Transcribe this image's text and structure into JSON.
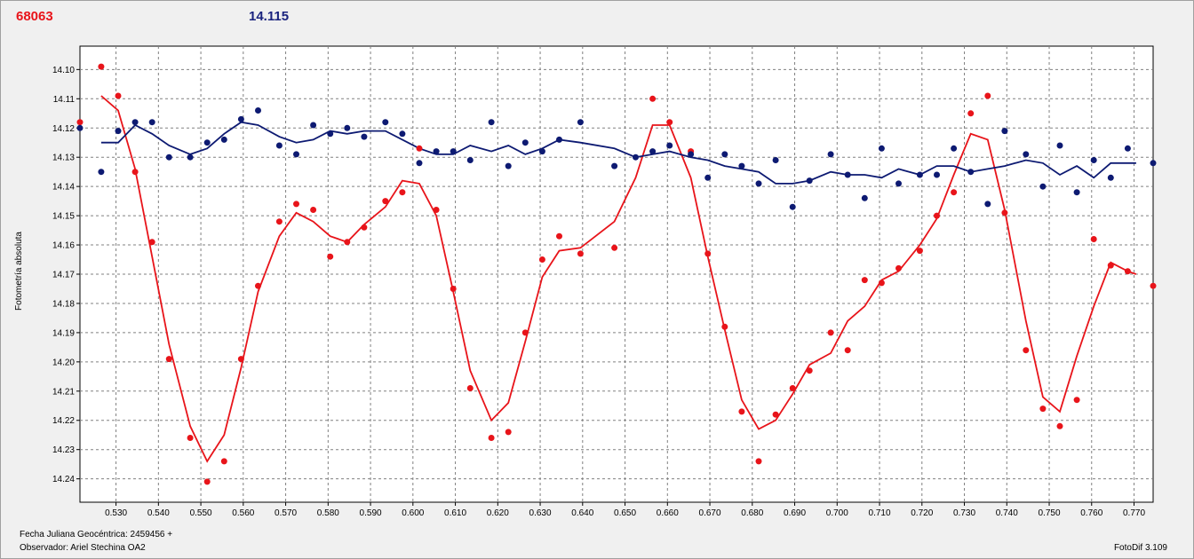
{
  "header": {
    "object_id": "68063",
    "reference_mag": "14.115"
  },
  "footer": {
    "julian_date": "Fecha Juliana Geocéntrica: 2459456 +",
    "observer": "Observador: Ariel Stechina OA2",
    "software": "FotoDif 3.109"
  },
  "chart_data": {
    "type": "scatter",
    "ylabel": "Fotometría absoluta",
    "xlim": [
      0.5215,
      0.7745
    ],
    "ylim": [
      14.092,
      14.248
    ],
    "y_inverted": true,
    "grid": true,
    "x_ticks": [
      "0.530",
      "0.540",
      "0.550",
      "0.560",
      "0.570",
      "0.580",
      "0.590",
      "0.600",
      "0.610",
      "0.620",
      "0.630",
      "0.640",
      "0.650",
      "0.660",
      "0.670",
      "0.680",
      "0.690",
      "0.700",
      "0.710",
      "0.720",
      "0.730",
      "0.740",
      "0.750",
      "0.760",
      "0.770"
    ],
    "y_ticks": [
      "14.10",
      "14.11",
      "14.12",
      "14.13",
      "14.14",
      "14.15",
      "14.16",
      "14.17",
      "14.18",
      "14.19",
      "14.20",
      "14.21",
      "14.22",
      "14.23",
      "14.24"
    ],
    "colors": {
      "red": "#e8141a",
      "blue": "#0d1a72"
    },
    "series": [
      {
        "color": "#e8141a",
        "points": [
          [
            0.5215,
            14.118
          ],
          [
            0.5265,
            14.099
          ],
          [
            0.5305,
            14.109
          ],
          [
            0.5345,
            14.135
          ],
          [
            0.5385,
            14.159
          ],
          [
            0.5425,
            14.199
          ],
          [
            0.5475,
            14.226
          ],
          [
            0.5515,
            14.241
          ],
          [
            0.5555,
            14.234
          ],
          [
            0.5595,
            14.199
          ],
          [
            0.5635,
            14.174
          ],
          [
            0.5685,
            14.152
          ],
          [
            0.5725,
            14.146
          ],
          [
            0.5765,
            14.148
          ],
          [
            0.5805,
            14.164
          ],
          [
            0.5845,
            14.159
          ],
          [
            0.5885,
            14.154
          ],
          [
            0.5935,
            14.145
          ],
          [
            0.5975,
            14.142
          ],
          [
            0.6015,
            14.127
          ],
          [
            0.6055,
            14.148
          ],
          [
            0.6095,
            14.175
          ],
          [
            0.6135,
            14.209
          ],
          [
            0.6185,
            14.226
          ],
          [
            0.6225,
            14.224
          ],
          [
            0.6265,
            14.19
          ],
          [
            0.6305,
            14.165
          ],
          [
            0.6345,
            14.157
          ],
          [
            0.6395,
            14.163
          ],
          [
            0.6475,
            14.161
          ],
          [
            0.6565,
            14.11
          ],
          [
            0.6605,
            14.118
          ],
          [
            0.6655,
            14.128
          ],
          [
            0.6695,
            14.163
          ],
          [
            0.6735,
            14.188
          ],
          [
            0.6775,
            14.217
          ],
          [
            0.6815,
            14.234
          ],
          [
            0.6855,
            14.218
          ],
          [
            0.6895,
            14.209
          ],
          [
            0.6935,
            14.203
          ],
          [
            0.6985,
            14.19
          ],
          [
            0.7025,
            14.196
          ],
          [
            0.7065,
            14.172
          ],
          [
            0.7105,
            14.173
          ],
          [
            0.7145,
            14.168
          ],
          [
            0.7195,
            14.162
          ],
          [
            0.7235,
            14.15
          ],
          [
            0.7275,
            14.142
          ],
          [
            0.7315,
            14.115
          ],
          [
            0.7355,
            14.109
          ],
          [
            0.7395,
            14.149
          ],
          [
            0.7445,
            14.196
          ],
          [
            0.7485,
            14.216
          ],
          [
            0.7525,
            14.222
          ],
          [
            0.7565,
            14.213
          ],
          [
            0.7605,
            14.158
          ],
          [
            0.7645,
            14.167
          ],
          [
            0.7685,
            14.169
          ],
          [
            0.7745,
            14.174
          ]
        ],
        "trend": [
          [
            0.5265,
            14.109
          ],
          [
            0.5305,
            14.114
          ],
          [
            0.5345,
            14.134
          ],
          [
            0.5385,
            14.164
          ],
          [
            0.5425,
            14.194
          ],
          [
            0.5475,
            14.222
          ],
          [
            0.5515,
            14.234
          ],
          [
            0.5555,
            14.225
          ],
          [
            0.5595,
            14.202
          ],
          [
            0.5635,
            14.176
          ],
          [
            0.5685,
            14.157
          ],
          [
            0.5725,
            14.149
          ],
          [
            0.5765,
            14.152
          ],
          [
            0.5805,
            14.157
          ],
          [
            0.5845,
            14.159
          ],
          [
            0.5885,
            14.153
          ],
          [
            0.5935,
            14.147
          ],
          [
            0.5975,
            14.138
          ],
          [
            0.6015,
            14.139
          ],
          [
            0.6055,
            14.15
          ],
          [
            0.6095,
            14.176
          ],
          [
            0.6135,
            14.203
          ],
          [
            0.6185,
            14.22
          ],
          [
            0.6225,
            14.214
          ],
          [
            0.6265,
            14.193
          ],
          [
            0.6305,
            14.171
          ],
          [
            0.6345,
            14.162
          ],
          [
            0.6395,
            14.161
          ],
          [
            0.6475,
            14.152
          ],
          [
            0.6525,
            14.137
          ],
          [
            0.6565,
            14.119
          ],
          [
            0.6605,
            14.119
          ],
          [
            0.6655,
            14.137
          ],
          [
            0.6695,
            14.164
          ],
          [
            0.6735,
            14.189
          ],
          [
            0.6775,
            14.213
          ],
          [
            0.6815,
            14.223
          ],
          [
            0.6855,
            14.22
          ],
          [
            0.6895,
            14.211
          ],
          [
            0.6935,
            14.201
          ],
          [
            0.6985,
            14.197
          ],
          [
            0.7025,
            14.186
          ],
          [
            0.7065,
            14.181
          ],
          [
            0.7105,
            14.172
          ],
          [
            0.7145,
            14.169
          ],
          [
            0.7195,
            14.16
          ],
          [
            0.7235,
            14.151
          ],
          [
            0.7275,
            14.136
          ],
          [
            0.7315,
            14.122
          ],
          [
            0.7355,
            14.124
          ],
          [
            0.7395,
            14.148
          ],
          [
            0.7445,
            14.186
          ],
          [
            0.7485,
            14.212
          ],
          [
            0.7525,
            14.217
          ],
          [
            0.7565,
            14.198
          ],
          [
            0.7605,
            14.181
          ],
          [
            0.7645,
            14.166
          ],
          [
            0.7685,
            14.169
          ],
          [
            0.7705,
            14.17
          ]
        ]
      },
      {
        "color": "#0d1a72",
        "points": [
          [
            0.5215,
            14.12
          ],
          [
            0.5265,
            14.135
          ],
          [
            0.5305,
            14.121
          ],
          [
            0.5345,
            14.118
          ],
          [
            0.5385,
            14.118
          ],
          [
            0.5425,
            14.13
          ],
          [
            0.5475,
            14.13
          ],
          [
            0.5515,
            14.125
          ],
          [
            0.5555,
            14.124
          ],
          [
            0.5595,
            14.117
          ],
          [
            0.5635,
            14.114
          ],
          [
            0.5685,
            14.126
          ],
          [
            0.5725,
            14.129
          ],
          [
            0.5765,
            14.119
          ],
          [
            0.5805,
            14.122
          ],
          [
            0.5845,
            14.12
          ],
          [
            0.5885,
            14.123
          ],
          [
            0.5935,
            14.118
          ],
          [
            0.5975,
            14.122
          ],
          [
            0.6015,
            14.132
          ],
          [
            0.6055,
            14.128
          ],
          [
            0.6095,
            14.128
          ],
          [
            0.6135,
            14.131
          ],
          [
            0.6185,
            14.118
          ],
          [
            0.6225,
            14.133
          ],
          [
            0.6265,
            14.125
          ],
          [
            0.6305,
            14.128
          ],
          [
            0.6345,
            14.124
          ],
          [
            0.6395,
            14.118
          ],
          [
            0.6475,
            14.133
          ],
          [
            0.6525,
            14.13
          ],
          [
            0.6565,
            14.128
          ],
          [
            0.6605,
            14.126
          ],
          [
            0.6655,
            14.129
          ],
          [
            0.6695,
            14.137
          ],
          [
            0.6735,
            14.129
          ],
          [
            0.6775,
            14.133
          ],
          [
            0.6815,
            14.139
          ],
          [
            0.6855,
            14.131
          ],
          [
            0.6895,
            14.147
          ],
          [
            0.6935,
            14.138
          ],
          [
            0.6985,
            14.129
          ],
          [
            0.7025,
            14.136
          ],
          [
            0.7065,
            14.144
          ],
          [
            0.7105,
            14.127
          ],
          [
            0.7145,
            14.139
          ],
          [
            0.7195,
            14.136
          ],
          [
            0.7235,
            14.136
          ],
          [
            0.7275,
            14.127
          ],
          [
            0.7315,
            14.135
          ],
          [
            0.7355,
            14.146
          ],
          [
            0.7395,
            14.121
          ],
          [
            0.7445,
            14.129
          ],
          [
            0.7485,
            14.14
          ],
          [
            0.7525,
            14.126
          ],
          [
            0.7565,
            14.142
          ],
          [
            0.7605,
            14.131
          ],
          [
            0.7645,
            14.137
          ],
          [
            0.7685,
            14.127
          ],
          [
            0.7745,
            14.132
          ]
        ],
        "trend": [
          [
            0.5265,
            14.125
          ],
          [
            0.5305,
            14.125
          ],
          [
            0.5345,
            14.119
          ],
          [
            0.5385,
            14.122
          ],
          [
            0.5425,
            14.126
          ],
          [
            0.5475,
            14.129
          ],
          [
            0.5515,
            14.127
          ],
          [
            0.5555,
            14.122
          ],
          [
            0.5595,
            14.118
          ],
          [
            0.5635,
            14.119
          ],
          [
            0.5685,
            14.123
          ],
          [
            0.5725,
            14.125
          ],
          [
            0.5765,
            14.124
          ],
          [
            0.5805,
            14.121
          ],
          [
            0.5845,
            14.122
          ],
          [
            0.5885,
            14.121
          ],
          [
            0.5935,
            14.121
          ],
          [
            0.5975,
            14.124
          ],
          [
            0.6015,
            14.127
          ],
          [
            0.6055,
            14.129
          ],
          [
            0.6095,
            14.129
          ],
          [
            0.6135,
            14.126
          ],
          [
            0.6185,
            14.128
          ],
          [
            0.6225,
            14.126
          ],
          [
            0.6265,
            14.129
          ],
          [
            0.6305,
            14.127
          ],
          [
            0.6345,
            14.124
          ],
          [
            0.6395,
            14.125
          ],
          [
            0.6475,
            14.127
          ],
          [
            0.6525,
            14.13
          ],
          [
            0.6565,
            14.129
          ],
          [
            0.6605,
            14.128
          ],
          [
            0.6655,
            14.13
          ],
          [
            0.6695,
            14.131
          ],
          [
            0.6735,
            14.133
          ],
          [
            0.6775,
            14.134
          ],
          [
            0.6815,
            14.135
          ],
          [
            0.6855,
            14.139
          ],
          [
            0.6895,
            14.139
          ],
          [
            0.6935,
            14.138
          ],
          [
            0.6985,
            14.135
          ],
          [
            0.7025,
            14.136
          ],
          [
            0.7065,
            14.136
          ],
          [
            0.7105,
            14.137
          ],
          [
            0.7145,
            14.134
          ],
          [
            0.7195,
            14.136
          ],
          [
            0.7235,
            14.133
          ],
          [
            0.7275,
            14.133
          ],
          [
            0.7315,
            14.135
          ],
          [
            0.7355,
            14.134
          ],
          [
            0.7395,
            14.133
          ],
          [
            0.7445,
            14.131
          ],
          [
            0.7485,
            14.132
          ],
          [
            0.7525,
            14.136
          ],
          [
            0.7565,
            14.133
          ],
          [
            0.7605,
            14.137
          ],
          [
            0.7645,
            14.132
          ],
          [
            0.7685,
            14.132
          ],
          [
            0.7705,
            14.132
          ]
        ]
      }
    ]
  }
}
